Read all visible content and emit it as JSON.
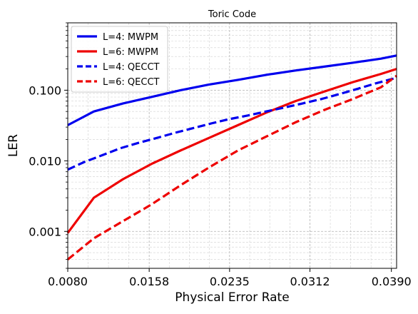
{
  "chart_data": {
    "type": "line",
    "title": "Toric Code",
    "xlabel": "Physical Error Rate",
    "ylabel": "LER",
    "xlim": [
      0.008,
      0.0395
    ],
    "ylim": [
      0.0003,
      0.9
    ],
    "yscale": "log",
    "grid": true,
    "legend_position": "top-left",
    "x_ticks": [
      "0.0080",
      "0.0158",
      "0.0235",
      "0.0312",
      "0.0390"
    ],
    "x_tick_values": [
      0.008,
      0.0158,
      0.0235,
      0.0312,
      0.039
    ],
    "y_ticks": [
      "0.001",
      "0.010",
      "0.100"
    ],
    "y_tick_values": [
      0.001,
      0.01,
      0.1
    ],
    "series": [
      {
        "name": "L=4: MWPM",
        "color": "#0000ee",
        "dash": "solid",
        "x": [
          0.008,
          0.0105,
          0.0133,
          0.016,
          0.0188,
          0.0215,
          0.0243,
          0.027,
          0.0298,
          0.0325,
          0.0353,
          0.038,
          0.0395
        ],
        "y": [
          0.032,
          0.05,
          0.065,
          0.08,
          0.1,
          0.12,
          0.14,
          0.165,
          0.19,
          0.215,
          0.245,
          0.28,
          0.31
        ]
      },
      {
        "name": "L=6: MWPM",
        "color": "#ee0000",
        "dash": "solid",
        "x": [
          0.008,
          0.0105,
          0.0133,
          0.016,
          0.0188,
          0.0215,
          0.0243,
          0.027,
          0.0298,
          0.0325,
          0.0353,
          0.038,
          0.0395
        ],
        "y": [
          0.00095,
          0.003,
          0.0055,
          0.009,
          0.014,
          0.021,
          0.032,
          0.048,
          0.07,
          0.095,
          0.13,
          0.17,
          0.2
        ]
      },
      {
        "name": "L=4: QECCT",
        "color": "#0000ee",
        "dash": "dashed",
        "x": [
          0.008,
          0.0095,
          0.0113,
          0.013,
          0.0148,
          0.0165,
          0.0183,
          0.02,
          0.0218,
          0.0235,
          0.0253,
          0.027,
          0.0288,
          0.0305,
          0.0323,
          0.034,
          0.0358,
          0.0375,
          0.0395
        ],
        "y": [
          0.0075,
          0.0095,
          0.012,
          0.015,
          0.018,
          0.021,
          0.025,
          0.029,
          0.034,
          0.039,
          0.044,
          0.05,
          0.057,
          0.065,
          0.075,
          0.088,
          0.105,
          0.125,
          0.15
        ]
      },
      {
        "name": "L=6: QECCT",
        "color": "#ee0000",
        "dash": "dashed",
        "x": [
          0.008,
          0.0105,
          0.0133,
          0.016,
          0.0188,
          0.0215,
          0.0243,
          0.027,
          0.0298,
          0.0325,
          0.0353,
          0.038,
          0.0395
        ],
        "y": [
          0.0004,
          0.0008,
          0.0014,
          0.0024,
          0.0045,
          0.008,
          0.014,
          0.022,
          0.035,
          0.052,
          0.075,
          0.11,
          0.16
        ]
      }
    ]
  }
}
